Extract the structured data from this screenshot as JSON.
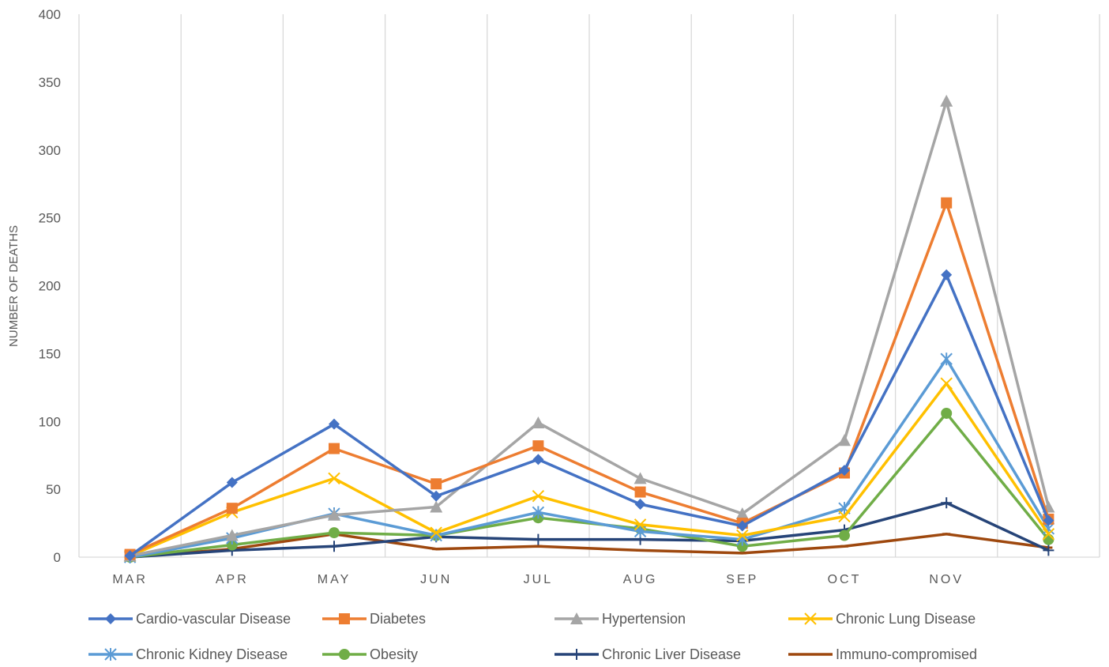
{
  "chart_data": {
    "type": "line",
    "title": "",
    "xlabel": "",
    "ylabel": "NUMBER OF DEATHS",
    "ylim": [
      0,
      400
    ],
    "yticks": [
      0,
      50,
      100,
      150,
      200,
      250,
      300,
      350,
      400
    ],
    "categories": [
      "MAR",
      "APR",
      "MAY",
      "JUN",
      "JUL",
      "AUG",
      "SEP",
      "OCT",
      "NOV",
      ""
    ],
    "grid": "vertical",
    "legend_position": "bottom",
    "series": [
      {
        "name": "Cardio-vascular Disease",
        "color": "#4472C4",
        "marker": "diamond",
        "values": [
          1,
          55,
          98,
          45,
          72,
          39,
          23,
          64,
          208,
          27
        ]
      },
      {
        "name": "Diabetes",
        "color": "#ED7D31",
        "marker": "square",
        "values": [
          2,
          36,
          80,
          54,
          82,
          48,
          25,
          62,
          261,
          28
        ]
      },
      {
        "name": "Hypertension",
        "color": "#A5A5A5",
        "marker": "triangle",
        "values": [
          1,
          16,
          31,
          37,
          99,
          58,
          32,
          86,
          336,
          37
        ]
      },
      {
        "name": "Chronic Lung Disease",
        "color": "#FFC000",
        "marker": "x",
        "values": [
          1,
          33,
          58,
          18,
          45,
          24,
          16,
          30,
          128,
          17
        ]
      },
      {
        "name": "Chronic Kidney Disease",
        "color": "#5B9BD5",
        "marker": "star",
        "values": [
          0,
          14,
          32,
          16,
          33,
          19,
          13,
          36,
          146,
          21
        ]
      },
      {
        "name": "Obesity",
        "color": "#70AD47",
        "marker": "circle",
        "values": [
          0,
          9,
          18,
          16,
          29,
          21,
          8,
          16,
          106,
          13
        ]
      },
      {
        "name": "Chronic Liver Disease",
        "color": "#264478",
        "marker": "plus",
        "values": [
          0,
          5,
          8,
          15,
          13,
          13,
          12,
          20,
          40,
          5
        ]
      },
      {
        "name": "Immuno-compromised",
        "color": "#9E480E",
        "marker": "dash",
        "values": [
          0,
          6,
          17,
          6,
          8,
          5,
          3,
          8,
          17,
          7
        ]
      }
    ]
  }
}
